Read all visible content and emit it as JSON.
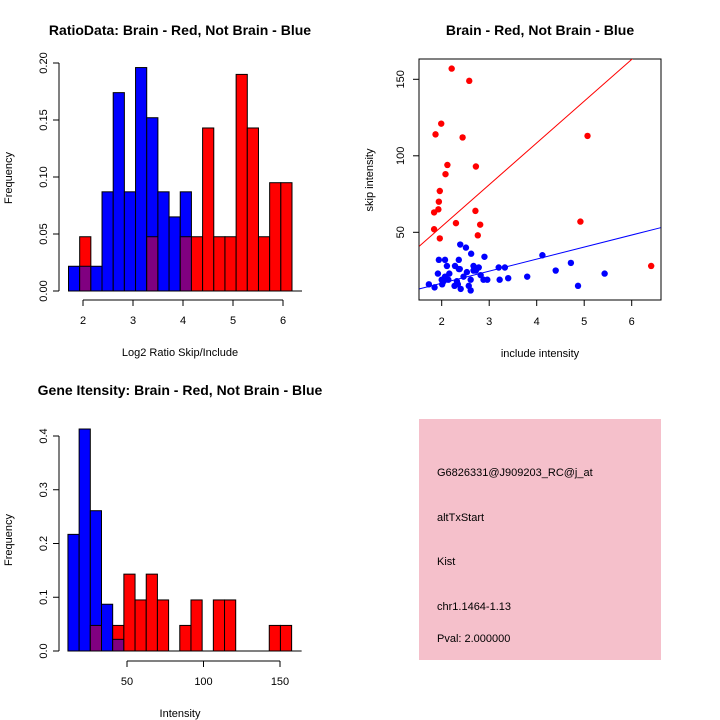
{
  "colors": {
    "brain": "#ff0000",
    "not_brain": "#0000ff",
    "overlap": "#800080",
    "info_bg": "#f5c0cb",
    "pval": "#8b0000"
  },
  "chart_data": [
    {
      "type": "bar",
      "title": "RatioData: Brain - Red, Not Brain - Blue",
      "xlabel": "Log2 Ratio Skip/Include",
      "ylabel": "Frequency",
      "bin_start": 1.71,
      "bin_width": 0.2235,
      "xticks": [
        "2",
        "3",
        "4",
        "5",
        "6"
      ],
      "yticks": [
        "0.00",
        "0.05",
        "0.10",
        "0.15",
        "0.20"
      ],
      "xlim": [
        1.71,
        6.2
      ],
      "ylim": [
        0,
        0.2
      ],
      "series": [
        {
          "name": "Not Brain",
          "color": "blue",
          "values": [
            0.0217,
            0.0217,
            0.0217,
            0.087,
            0.174,
            0.087,
            0.196,
            0.152,
            0.087,
            0.065,
            0.087,
            0,
            0,
            0,
            0,
            0,
            0,
            0,
            0,
            0
          ]
        },
        {
          "name": "Brain",
          "color": "red",
          "values": [
            0,
            0.0476,
            0,
            0,
            0,
            0,
            0,
            0.0476,
            0,
            0,
            0.0476,
            0.0476,
            0.143,
            0.0476,
            0.0476,
            0.19,
            0.143,
            0.0476,
            0.095,
            0.095
          ]
        }
      ]
    },
    {
      "type": "scatter",
      "title": "Brain - Red, Not Brain - Blue",
      "xlabel": "include intensity",
      "ylabel": "skip intensity",
      "xticks": [
        "2",
        "3",
        "4",
        "5",
        "6"
      ],
      "yticks": [
        "50",
        "100",
        "150"
      ],
      "xlim": [
        1.53,
        6.61
      ],
      "ylim": [
        7.5,
        163
      ],
      "series": [
        {
          "name": "Brain",
          "color": "red",
          "fit": {
            "slope": 27.3,
            "intercept": -0.8
          },
          "points": [
            [
              2.21,
              157
            ],
            [
              2.58,
              149
            ],
            [
              1.99,
              121
            ],
            [
              1.87,
              114
            ],
            [
              2.44,
              112
            ],
            [
              5.07,
              113
            ],
            [
              2.12,
              94
            ],
            [
              2.72,
              93
            ],
            [
              2.08,
              88
            ],
            [
              1.96,
              77
            ],
            [
              1.94,
              70
            ],
            [
              1.93,
              65
            ],
            [
              1.84,
              63
            ],
            [
              2.71,
              64
            ],
            [
              2.3,
              56
            ],
            [
              2.81,
              55
            ],
            [
              1.84,
              52
            ],
            [
              2.76,
              48
            ],
            [
              1.96,
              46
            ],
            [
              4.92,
              57
            ],
            [
              6.41,
              28
            ]
          ]
        },
        {
          "name": "Not Brain",
          "color": "blue",
          "fit": {
            "slope": 7.87,
            "intercept": 1.0
          },
          "points": [
            [
              2.39,
              42
            ],
            [
              2.51,
              40
            ],
            [
              2.62,
              36
            ],
            [
              1.94,
              32
            ],
            [
              2.07,
              32
            ],
            [
              2.36,
              32
            ],
            [
              2.9,
              34
            ],
            [
              4.12,
              35
            ],
            [
              4.72,
              30
            ],
            [
              2.11,
              28
            ],
            [
              2.28,
              28
            ],
            [
              2.38,
              26
            ],
            [
              2.67,
              28
            ],
            [
              2.78,
              27
            ],
            [
              3.2,
              27
            ],
            [
              3.33,
              27
            ],
            [
              1.92,
              23
            ],
            [
              2.16,
              23
            ],
            [
              2.53,
              24
            ],
            [
              2.72,
              25
            ],
            [
              4.4,
              25
            ],
            [
              5.43,
              23
            ],
            [
              2.07,
              21
            ],
            [
              2.46,
              21
            ],
            [
              2.82,
              22
            ],
            [
              2.88,
              19
            ],
            [
              2.96,
              19
            ],
            [
              3.22,
              19
            ],
            [
              3.4,
              20
            ],
            [
              3.8,
              21
            ],
            [
              2.61,
              19
            ],
            [
              1.73,
              16
            ],
            [
              1.85,
              14
            ],
            [
              2.01,
              16
            ],
            [
              2.27,
              15
            ],
            [
              2.34,
              16
            ],
            [
              2.57,
              15
            ],
            [
              2.4,
              13
            ],
            [
              2.61,
              12
            ],
            [
              4.87,
              15
            ],
            [
              2.36,
              26
            ],
            [
              2.04,
              18
            ],
            [
              2.14,
              19
            ],
            [
              2.32,
              18
            ],
            [
              2.67,
              25
            ],
            [
              2.0,
              19
            ]
          ]
        }
      ]
    },
    {
      "type": "bar",
      "title": "Gene Itensity: Brain - Red, Not Brain - Blue",
      "xlabel": "Intensity",
      "ylabel": "Frequency",
      "bin_start": 11.4,
      "bin_width": 7.31,
      "xticks": [
        "50",
        "100",
        "150"
      ],
      "yticks": [
        "0.0",
        "0.1",
        "0.2",
        "0.3",
        "0.4"
      ],
      "xlim": [
        11.4,
        157.6
      ],
      "ylim": [
        0,
        0.4
      ],
      "series": [
        {
          "name": "Not Brain",
          "color": "blue",
          "values": [
            0.217,
            0.413,
            0.261,
            0.087,
            0.0217,
            0,
            0,
            0,
            0,
            0,
            0,
            0,
            0,
            0,
            0,
            0,
            0,
            0,
            0,
            0
          ]
        },
        {
          "name": "Brain",
          "color": "red",
          "values": [
            0,
            0,
            0.0476,
            0,
            0.0476,
            0.143,
            0.095,
            0.143,
            0.095,
            0,
            0.0476,
            0.095,
            0,
            0.095,
            0.095,
            0,
            0,
            0,
            0.0476,
            0.0476
          ]
        }
      ]
    }
  ],
  "info": {
    "probe": "G6826331@J909203_RC@j_at",
    "event": "altTxStart",
    "gene": "Kist",
    "location": "chr1.1464-1.13",
    "pval": "Pval: 2.000000"
  }
}
